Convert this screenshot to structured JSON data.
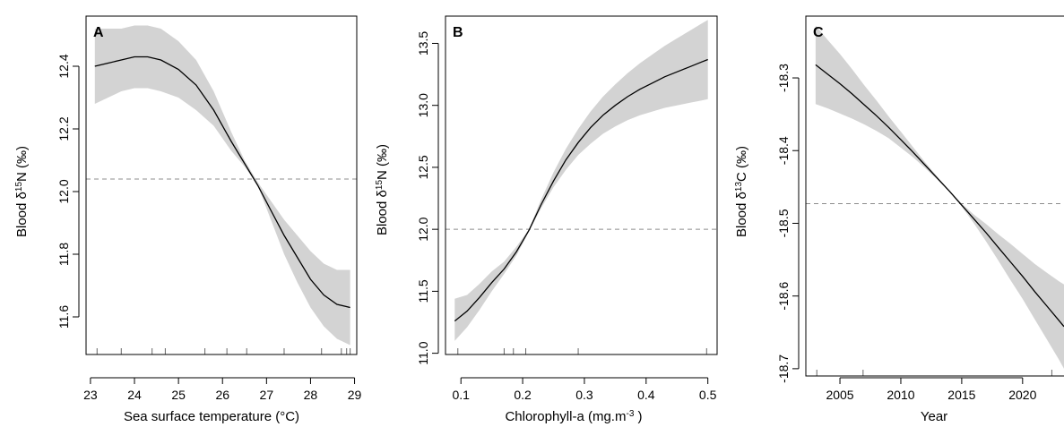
{
  "chart_data": [
    {
      "type": "line",
      "panel_letter": "A",
      "xlabel": "Sea surface temperature (°C)",
      "ylabel": {
        "prefix": "Blood δ",
        "sup": "15",
        "suffix": "N (‰)"
      },
      "xlim": [
        22.9,
        29.05
      ],
      "ylim": [
        11.48,
        12.56
      ],
      "xticks": [
        23,
        24,
        25,
        26,
        27,
        28,
        29
      ],
      "yticks": [
        11.6,
        11.8,
        12.0,
        12.2,
        12.4
      ],
      "reference_line": 12.04,
      "grid": false,
      "series": [
        {
          "x": [
            23.1,
            23.4,
            23.7,
            24.0,
            24.3,
            24.6,
            25.0,
            25.4,
            25.8,
            26.2,
            26.5,
            26.8,
            27.1,
            27.4,
            27.7,
            28.0,
            28.3,
            28.6,
            28.9
          ],
          "y": [
            12.4,
            12.41,
            12.42,
            12.43,
            12.43,
            12.42,
            12.39,
            12.34,
            12.26,
            12.16,
            12.09,
            12.02,
            11.94,
            11.86,
            11.79,
            11.72,
            11.67,
            11.64,
            11.63
          ],
          "lower": [
            12.28,
            12.3,
            12.32,
            12.33,
            12.33,
            12.32,
            12.3,
            12.26,
            12.21,
            12.13,
            12.08,
            12.02,
            11.91,
            11.8,
            11.71,
            11.63,
            11.57,
            11.53,
            11.51
          ],
          "upper": [
            12.52,
            12.52,
            12.52,
            12.53,
            12.53,
            12.52,
            12.48,
            12.42,
            12.32,
            12.19,
            12.1,
            12.03,
            11.97,
            11.91,
            11.86,
            11.81,
            11.77,
            11.75,
            11.75
          ]
        }
      ],
      "rug": [
        23.15,
        23.7,
        24.4,
        24.7,
        25.6,
        26.1,
        26.55,
        27.4,
        28.25,
        28.7,
        28.82,
        28.9
      ]
    },
    {
      "type": "line",
      "panel_letter": "B",
      "xlabel": {
        "prefix": "Chlorophyll-a (mg.m",
        "sup": "-3",
        "suffix": " )"
      },
      "ylabel": {
        "prefix": "Blood δ",
        "sup": "15",
        "suffix": "N (‰)"
      },
      "xlim": [
        0.075,
        0.515
      ],
      "ylim": [
        10.99,
        13.72
      ],
      "xticks": [
        0.1,
        0.2,
        0.3,
        0.4,
        0.5
      ],
      "yticks": [
        11.0,
        11.5,
        12.0,
        12.5,
        13.0,
        13.5
      ],
      "reference_line": 12.0,
      "grid": false,
      "series": [
        {
          "x": [
            0.09,
            0.11,
            0.13,
            0.15,
            0.17,
            0.19,
            0.21,
            0.23,
            0.25,
            0.27,
            0.29,
            0.31,
            0.33,
            0.35,
            0.37,
            0.39,
            0.41,
            0.43,
            0.45,
            0.47,
            0.49,
            0.5
          ],
          "y": [
            11.26,
            11.34,
            11.45,
            11.57,
            11.68,
            11.82,
            11.99,
            12.2,
            12.39,
            12.56,
            12.7,
            12.82,
            12.92,
            13.0,
            13.07,
            13.13,
            13.18,
            13.23,
            13.27,
            13.31,
            13.35,
            13.37
          ],
          "lower": [
            11.1,
            11.21,
            11.35,
            11.5,
            11.64,
            11.79,
            11.98,
            12.17,
            12.34,
            12.48,
            12.6,
            12.69,
            12.77,
            12.83,
            12.88,
            12.92,
            12.95,
            12.98,
            13.0,
            13.02,
            13.04,
            13.05
          ],
          "upper": [
            11.44,
            11.47,
            11.56,
            11.66,
            11.74,
            11.86,
            12.0,
            12.24,
            12.46,
            12.65,
            12.81,
            12.95,
            13.07,
            13.17,
            13.26,
            13.34,
            13.41,
            13.48,
            13.54,
            13.6,
            13.66,
            13.69
          ]
        }
      ],
      "rug": [
        0.095,
        0.17,
        0.185,
        0.205,
        0.29,
        0.498
      ]
    },
    {
      "type": "line",
      "panel_letter": "C",
      "xlabel": "Year",
      "ylabel": {
        "prefix": "Blood δ",
        "sup": "13",
        "suffix": "C (‰)"
      },
      "xlim": [
        2002.2,
        2023.4
      ],
      "ylim": [
        -18.71,
        -18.215
      ],
      "xticks": [
        2005,
        2010,
        2015,
        2020
      ],
      "yticks": [
        -18.3,
        -18.4,
        -18.5,
        -18.6,
        -18.7
      ],
      "reference_line": -18.473,
      "grid": false,
      "series": [
        {
          "x": [
            2003,
            2004,
            2005,
            2006,
            2007,
            2008,
            2009,
            2010,
            2011,
            2012,
            2013,
            2014,
            2015,
            2016,
            2017,
            2018,
            2019,
            2020,
            2021,
            2022,
            2023,
            2023.4
          ],
          "y": [
            -18.282,
            -18.295,
            -18.308,
            -18.322,
            -18.337,
            -18.352,
            -18.368,
            -18.385,
            -18.402,
            -18.42,
            -18.438,
            -18.456,
            -18.475,
            -18.494,
            -18.513,
            -18.533,
            -18.553,
            -18.573,
            -18.594,
            -18.614,
            -18.634,
            -18.642
          ],
          "lower": [
            -18.336,
            -18.342,
            -18.349,
            -18.356,
            -18.364,
            -18.373,
            -18.383,
            -18.396,
            -18.409,
            -18.424,
            -18.44,
            -18.457,
            -18.477,
            -18.5,
            -18.525,
            -18.551,
            -18.578,
            -18.604,
            -18.632,
            -18.66,
            -18.688,
            -18.7
          ],
          "upper": [
            -18.228,
            -18.248,
            -18.267,
            -18.288,
            -18.31,
            -18.331,
            -18.353,
            -18.374,
            -18.395,
            -18.416,
            -18.436,
            -18.455,
            -18.473,
            -18.488,
            -18.501,
            -18.515,
            -18.528,
            -18.542,
            -18.556,
            -18.568,
            -18.58,
            -18.584
          ]
        }
      ],
      "rug": [
        2003.1,
        2006.9,
        2022.4
      ]
    }
  ]
}
